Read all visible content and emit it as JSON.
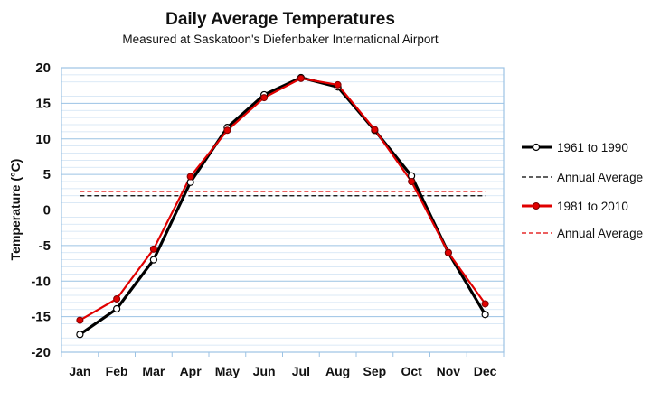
{
  "chart_data": {
    "type": "line",
    "title": "Daily Average Temperatures",
    "subtitle": "Measured at Saskatoon's Diefenbaker International Airport",
    "ylabel": "Temperature (°C)",
    "xlabel": "",
    "categories": [
      "Jan",
      "Feb",
      "Mar",
      "Apr",
      "May",
      "Jun",
      "Jul",
      "Aug",
      "Sep",
      "Oct",
      "Nov",
      "Dec"
    ],
    "ylim": [
      -20,
      20
    ],
    "yticks": [
      20,
      15,
      10,
      5,
      0,
      -5,
      -10,
      -15,
      -20
    ],
    "grid": true,
    "legend_position": "right",
    "series": [
      {
        "name": "1961 to 1990",
        "values": [
          -17.5,
          -13.9,
          -7.0,
          3.9,
          11.6,
          16.2,
          18.6,
          17.3,
          11.2,
          4.8,
          -6.0,
          -14.7
        ],
        "color": "#000000",
        "marker": "hollow-circle",
        "annual_average": 2.0,
        "annual_average_label": "Annual Average"
      },
      {
        "name": "1981 to 2010",
        "values": [
          -15.5,
          -12.5,
          -5.5,
          4.7,
          11.2,
          15.8,
          18.5,
          17.6,
          11.3,
          4.0,
          -6.0,
          -13.2
        ],
        "color": "#e00000",
        "marker": "filled-circle",
        "annual_average": 2.6,
        "annual_average_label": "Annual Average"
      }
    ]
  }
}
